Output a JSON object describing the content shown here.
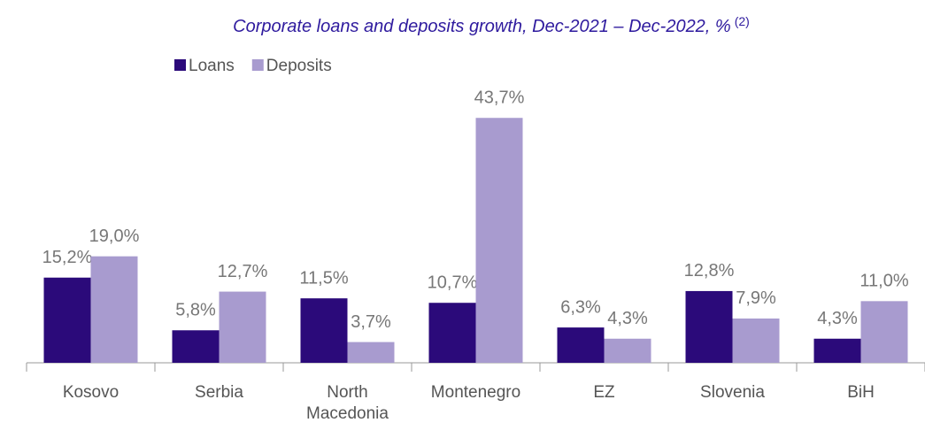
{
  "chart_data": {
    "type": "bar",
    "title": "Corporate loans and deposits growth, Dec-2021 – Dec-2022, %",
    "title_superscript": "(2)",
    "categories": [
      "Kosovo",
      "Serbia",
      "North Macedonia",
      "Montenegro",
      "EZ",
      "Slovenia",
      "BiH"
    ],
    "series": [
      {
        "name": "Loans",
        "color": "#2b0a7a",
        "values": [
          15.2,
          5.8,
          11.5,
          10.7,
          6.3,
          12.8,
          4.3
        ],
        "value_labels": [
          "15,2%",
          "5,8%",
          "11,5%",
          "10,7%",
          "6,3%",
          "12,8%",
          "4,3%"
        ]
      },
      {
        "name": "Deposits",
        "color": "#a89bcf",
        "values": [
          19.0,
          12.7,
          3.7,
          43.7,
          4.3,
          7.9,
          11.0
        ],
        "value_labels": [
          "19,0%",
          "12,7%",
          "3,7%",
          "43,7%",
          "4,3%",
          "7,9%",
          "11,0%"
        ]
      }
    ],
    "ylim": [
      0,
      45
    ],
    "legend": "top-left"
  }
}
